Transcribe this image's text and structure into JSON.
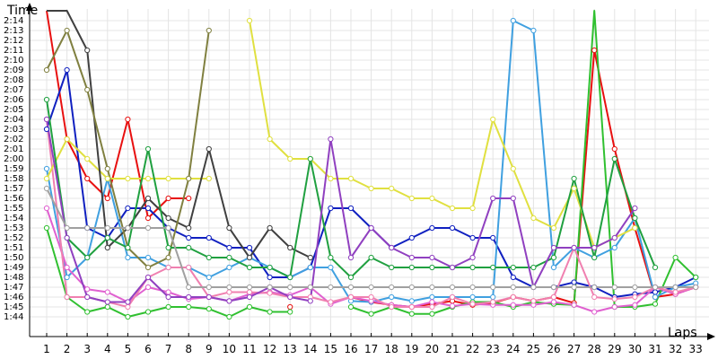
{
  "chart_data": {
    "type": "line",
    "xlabel": "Laps",
    "ylabel": "Time",
    "grid": true,
    "x_categories": [
      "1",
      "2",
      "3",
      "4",
      "5",
      "6",
      "7",
      "8",
      "9",
      "10",
      "11",
      "12",
      "13",
      "14",
      "15",
      "16",
      "17",
      "18",
      "19",
      "20",
      "21",
      "22",
      "23",
      "24",
      "25",
      "26",
      "27",
      "28",
      "29",
      "30",
      "31",
      "32",
      "33"
    ],
    "y_tick_labels": [
      "1:44",
      "1:45",
      "1:46",
      "1:47",
      "1:48",
      "1:49",
      "1:50",
      "1:51",
      "1:52",
      "1:53",
      "1:54",
      "1:55",
      "1:56",
      "1:57",
      "1:58",
      "1:59",
      "2:00",
      "2:01",
      "2:02",
      "2:03",
      "2:04",
      "2:05",
      "2:06",
      "2:07",
      "2:08",
      "2:09",
      "2:10",
      "2:11",
      "2:12",
      "2:13",
      "2:14"
    ],
    "ylim_seconds": [
      103.5,
      135
    ],
    "series": [
      {
        "color": "#e81010",
        "values_seconds": [
          135,
          122,
          118,
          116,
          124,
          114,
          116,
          116,
          null,
          null,
          null,
          null,
          105,
          null,
          null,
          106,
          105.5,
          105.2,
          105,
          105.3,
          105.6,
          105.2,
          105.4,
          106,
          105.6,
          106,
          105.4,
          131,
          121,
          113,
          106,
          106.3,
          107
        ]
      },
      {
        "color": "#1020c0",
        "values_seconds": [
          123,
          129,
          113,
          112,
          115,
          115,
          113,
          112,
          112,
          111,
          111,
          108,
          108,
          109,
          115,
          115,
          113,
          111,
          112,
          113,
          113,
          112,
          112,
          108,
          107,
          107,
          107.5,
          107,
          106,
          106.3,
          106.5,
          107,
          108
        ]
      },
      {
        "color": "#30c030",
        "values_seconds": [
          113,
          106,
          104.5,
          105,
          104,
          104.5,
          105,
          105,
          104.8,
          104,
          105,
          104.5,
          104.5,
          null,
          null,
          105,
          104.3,
          105,
          104.3,
          104.3,
          105,
          105.5,
          105.5,
          105,
          105.5,
          105.3,
          105.2,
          135,
          105,
          105,
          105.3,
          110,
          108
        ]
      },
      {
        "color": "#40a0e0",
        "values_seconds": [
          119,
          108,
          110,
          118,
          110,
          110,
          109,
          109,
          108,
          109,
          110,
          109,
          108,
          109,
          109,
          105.6,
          105.5,
          106,
          105.6,
          106,
          106,
          106,
          106,
          134,
          133,
          109,
          111,
          110,
          111,
          114,
          106,
          107,
          107.4
        ]
      },
      {
        "color": "#e060d0",
        "values_seconds": [
          115,
          109,
          106.8,
          106.5,
          105.5,
          107,
          106.5,
          105.8,
          106,
          105.6,
          106.3,
          106.5,
          106.2,
          107,
          105.3,
          106,
          105.6,
          105.2,
          105,
          105.5,
          105.1,
          105.3,
          105.2,
          105.2,
          105.2,
          105.5,
          105.2,
          104.5,
          105,
          105.2,
          107,
          106.3,
          107
        ]
      },
      {
        "color": "#f080b0",
        "values_seconds": [
          124,
          106,
          106,
          105.5,
          105,
          108,
          109,
          109,
          106,
          106.5,
          106.5,
          106.4,
          106,
          106,
          105.5,
          106,
          106,
          105,
          105,
          105,
          106,
          105.3,
          105.5,
          106,
          105.6,
          106,
          111,
          106,
          105.8,
          106,
          107,
          106.5,
          107
        ]
      },
      {
        "color": "#e0e040",
        "values_seconds": [
          118,
          122,
          120,
          118,
          118,
          118,
          118,
          118,
          118,
          null,
          134,
          122,
          120,
          120,
          118,
          118,
          117,
          117,
          116,
          116,
          115,
          115,
          124,
          119,
          114,
          113,
          117,
          111,
          112,
          113,
          null,
          null,
          null
        ]
      },
      {
        "color": "#404040",
        "values_seconds": [
          135,
          135,
          131,
          111,
          113,
          116,
          114,
          113,
          121,
          113,
          110,
          113,
          111,
          110,
          null,
          null,
          null,
          null,
          null,
          null,
          null,
          null,
          null,
          null,
          null,
          null,
          null,
          null,
          null,
          null,
          null,
          null,
          null
        ]
      },
      {
        "color": "#808040",
        "values_seconds": [
          129,
          133,
          127,
          119,
          111,
          109,
          110,
          118,
          133,
          null,
          null,
          null,
          null,
          null,
          null,
          null,
          null,
          null,
          null,
          null,
          null,
          null,
          null,
          null,
          null,
          null,
          null,
          null,
          null,
          null,
          null,
          null,
          null
        ]
      },
      {
        "color": "#20a040",
        "values_seconds": [
          126,
          112,
          110,
          112,
          111,
          121,
          111,
          111,
          110,
          110,
          109,
          109,
          108,
          120,
          110,
          108,
          110,
          109,
          109,
          109,
          109,
          109,
          109,
          109,
          109,
          110,
          118,
          110,
          120,
          114,
          109,
          null,
          null
        ]
      },
      {
        "color": "#9040c0",
        "values_seconds": [
          124,
          112,
          106,
          105.5,
          105.5,
          108,
          106,
          106,
          106,
          105.6,
          106,
          107,
          106,
          105.6,
          122,
          110,
          113,
          111,
          110,
          110,
          109,
          110,
          116,
          116,
          107,
          111,
          111,
          111,
          112,
          115,
          null,
          null,
          null
        ]
      },
      {
        "color": "#a0a0a0",
        "values_seconds": [
          117,
          113,
          113,
          113,
          113,
          113,
          113,
          107,
          107,
          107,
          107,
          107,
          107,
          107,
          107,
          107,
          107,
          107,
          107,
          107,
          107,
          107,
          107,
          107,
          107,
          107,
          107,
          107,
          107,
          107,
          107,
          107,
          107
        ]
      }
    ]
  }
}
